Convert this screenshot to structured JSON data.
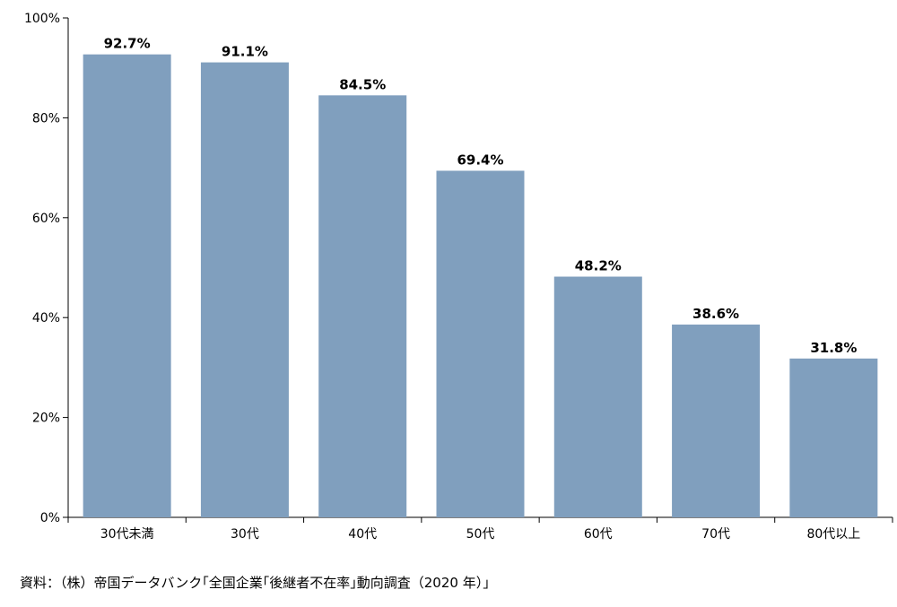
{
  "chart_data": {
    "type": "bar",
    "categories": [
      "30代未満",
      "30代",
      "40代",
      "50代",
      "60代",
      "70代",
      "80代以上"
    ],
    "values": [
      92.7,
      91.1,
      84.5,
      69.4,
      48.2,
      38.6,
      31.8
    ],
    "value_labels": [
      "92.7%",
      "91.1%",
      "84.5%",
      "69.4%",
      "48.2%",
      "38.6%",
      "31.8%"
    ],
    "y_ticks": [
      0,
      20,
      40,
      60,
      80,
      100
    ],
    "y_tick_labels": [
      "0%",
      "20%",
      "40%",
      "60%",
      "80%",
      "100%"
    ],
    "ylim": [
      0,
      100
    ],
    "grid": false,
    "bar_color": "#809fbe"
  },
  "source_text": "資料：（株）帝国データバンク｢全国企業｢後継者不在率｣動向調査（2020 年）｣"
}
